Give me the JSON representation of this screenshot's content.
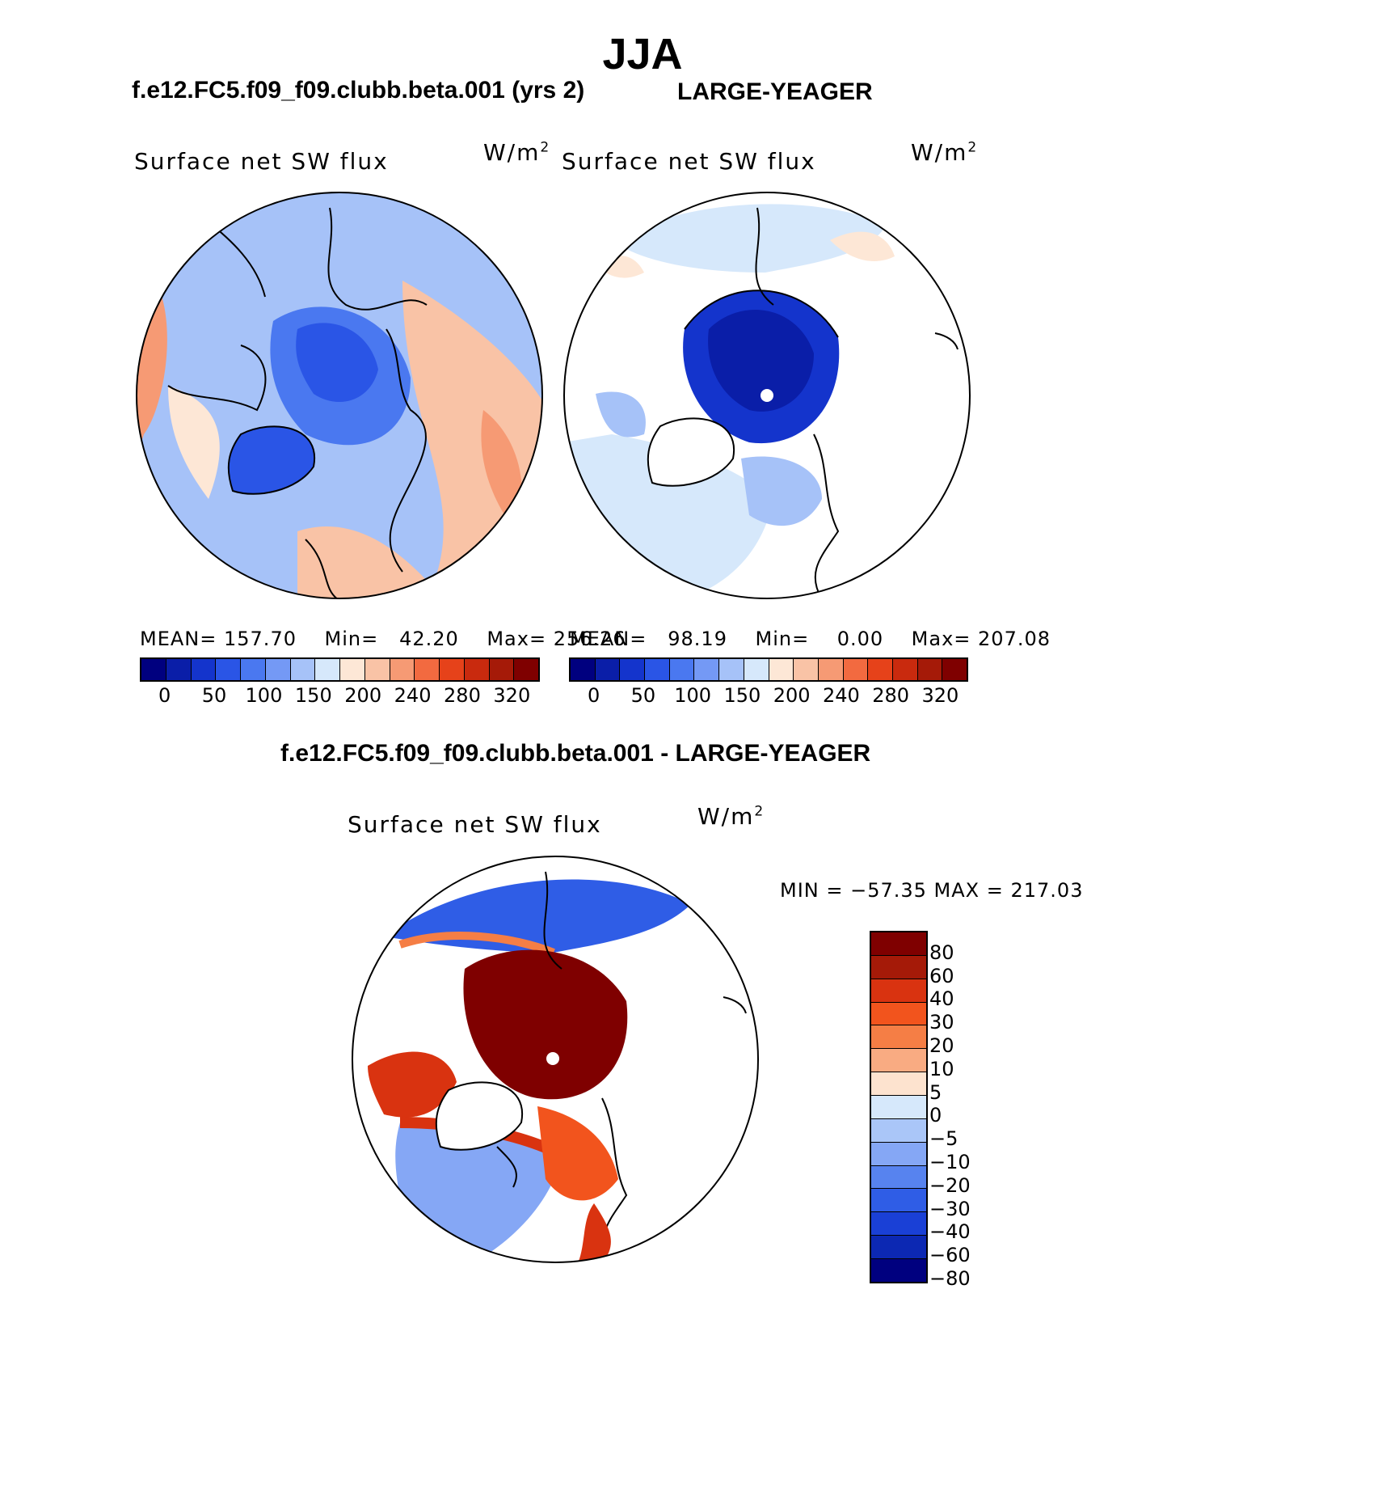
{
  "main_title": "JJA",
  "panel_left": {
    "case_title": "f.e12.FC5.f09_f09.clubb.beta.001 (yrs 2)",
    "variable": "Surface net SW flux",
    "units_base": "W/m",
    "units_exp": "2",
    "stats": {
      "mean_label": "MEAN=",
      "mean": "157.70",
      "min_label": "Min=",
      "min": "42.20",
      "max_label": "Max=",
      "max": "256.26"
    }
  },
  "panel_right": {
    "case_title": "LARGE-YEAGER",
    "variable": "Surface net SW flux",
    "units_base": "W/m",
    "units_exp": "2",
    "stats": {
      "mean_label": "MEAN=",
      "mean": "98.19",
      "min_label": "Min=",
      "min": "0.00",
      "max_label": "Max=",
      "max": "207.08"
    }
  },
  "panel_diff": {
    "case_title": "f.e12.FC5.f09_f09.clubb.beta.001 - LARGE-YEAGER",
    "variable": "Surface net SW flux",
    "units_base": "W/m",
    "units_exp": "2",
    "minmax": "MIN = −57.35 MAX = 217.03"
  },
  "colorbar_abs": {
    "colors": [
      "#00007f",
      "#0a1ea8",
      "#1434cc",
      "#2a55e6",
      "#4a78f0",
      "#7499f5",
      "#a6c2f8",
      "#d6e8fb",
      "#fde7d6",
      "#f9c3a6",
      "#f69a74",
      "#f26a40",
      "#e6421a",
      "#c92a0e",
      "#a51a08",
      "#7f0000"
    ],
    "labels": [
      "0",
      "50",
      "100",
      "150",
      "200",
      "240",
      "280",
      "320"
    ]
  },
  "colorbar_diff": {
    "colors": [
      "#7f0000",
      "#a51a08",
      "#d93310",
      "#f2541d",
      "#f57e45",
      "#f9ab82",
      "#fde3cf",
      "#d6e8fb",
      "#aac6f8",
      "#85a7f5",
      "#5783ef",
      "#2f5de6",
      "#1a40d6",
      "#0c28b3",
      "#00007f"
    ],
    "labels": [
      "80",
      "60",
      "40",
      "30",
      "20",
      "10",
      "5",
      "0",
      "−5",
      "−10",
      "−20",
      "−30",
      "−40",
      "−60",
      "−80"
    ]
  },
  "colors": {
    "land_outline": "#000000",
    "circle_outline": "#000000",
    "pole_marker": "#ffffff"
  }
}
